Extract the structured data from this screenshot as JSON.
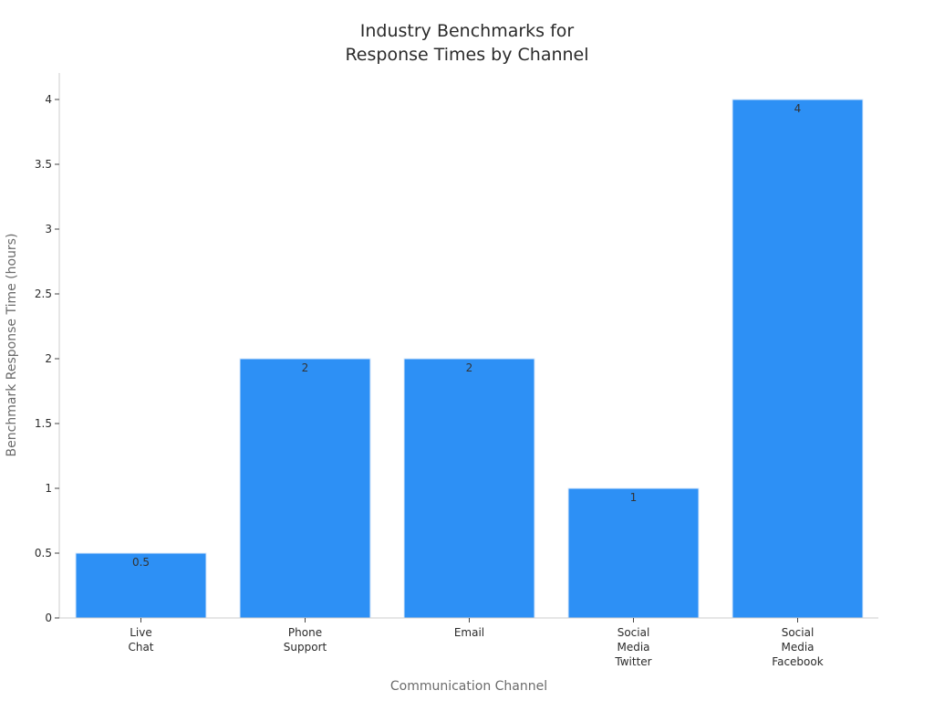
{
  "chart_data": {
    "type": "bar",
    "title_lines": [
      "Industry Benchmarks for",
      "Response Times by Channel"
    ],
    "xlabel": "Communication Channel",
    "ylabel": "Benchmark Response Time (hours)",
    "categories": [
      [
        "Live",
        "Chat"
      ],
      [
        "Phone",
        "Support"
      ],
      [
        "Email"
      ],
      [
        "Social",
        "Media",
        "Twitter"
      ],
      [
        "Social",
        "Media",
        "Facebook"
      ]
    ],
    "values": [
      0.5,
      2,
      2,
      1,
      4
    ],
    "data_labels": [
      "0.5",
      "2",
      "2",
      "1",
      "4"
    ],
    "ylim": [
      0,
      4.2
    ],
    "yticks": [
      0,
      0.5,
      1,
      1.5,
      2,
      2.5,
      3,
      3.5,
      4
    ],
    "ytick_labels": [
      "0",
      "0.5",
      "1",
      "1.5",
      "2",
      "2.5",
      "3",
      "3.5",
      "4"
    ],
    "bar_color": "#2d90f5",
    "grid": false,
    "legend": "none"
  }
}
